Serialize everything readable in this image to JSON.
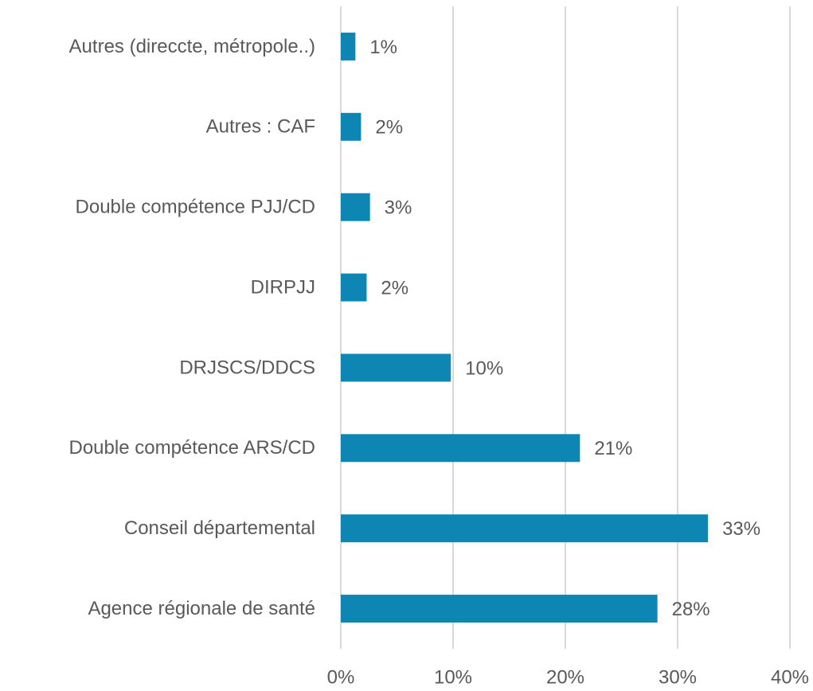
{
  "chart_data": {
    "type": "hbar",
    "categories": [
      "Autres (direccte, métropole..)",
      "Autres : CAF",
      "Double compétence PJJ/CD",
      "DIRPJJ",
      "DRJSCS/DDCS",
      "Double compétence ARS/CD",
      "Conseil départemental",
      "Agence régionale de santé"
    ],
    "values": [
      1.3,
      1.8,
      2.6,
      2.3,
      9.8,
      21.3,
      32.7,
      28.2
    ],
    "value_labels": [
      "1%",
      "2%",
      "3%",
      "2%",
      "10%",
      "21%",
      "33%",
      "28%"
    ],
    "color": "#0e86b3",
    "xlim": [
      0,
      40
    ],
    "xticks": [
      {
        "value": 0,
        "label": "0%"
      },
      {
        "value": 10,
        "label": "10%"
      },
      {
        "value": 20,
        "label": "20%"
      },
      {
        "value": 30,
        "label": "30%"
      },
      {
        "value": 40,
        "label": "40%"
      }
    ],
    "grid": true
  }
}
